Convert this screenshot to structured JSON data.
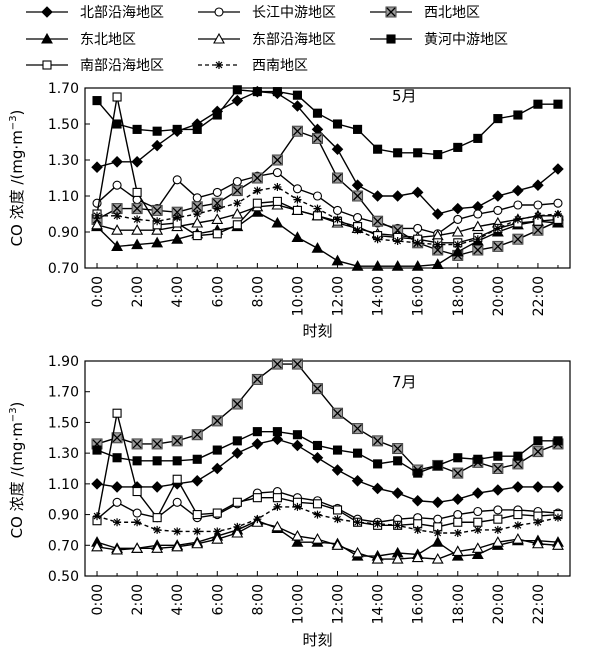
{
  "chart_data": [
    {
      "type": "line",
      "panel_label": "5月",
      "xlabel": "时刻",
      "ylabel": "CO 浓度 /(mg·m",
      "ylabel_sup": "−3",
      "ylabel_close": ")",
      "x": [
        0,
        1,
        2,
        3,
        4,
        5,
        6,
        7,
        8,
        9,
        10,
        11,
        12,
        13,
        14,
        15,
        16,
        17,
        18,
        19,
        20,
        21,
        22,
        23
      ],
      "xticks": [
        0,
        2,
        4,
        6,
        8,
        10,
        12,
        14,
        16,
        18,
        20,
        22
      ],
      "xtick_labels": [
        "0:00",
        "2:00",
        "4:00",
        "6:00",
        "8:00",
        "10:00",
        "12:00",
        "14:00",
        "16:00",
        "18:00",
        "20:00",
        "22:00"
      ],
      "ylim": [
        0.7,
        1.7
      ],
      "yticks": [
        0.7,
        0.9,
        1.1,
        1.3,
        1.5,
        1.7
      ],
      "ytick_labels": [
        "0.70",
        "0.90",
        "1.10",
        "1.30",
        "1.50",
        "1.70"
      ],
      "series": [
        {
          "name": "北部沿海地区",
          "values": [
            1.26,
            1.29,
            1.29,
            1.38,
            1.46,
            1.5,
            1.57,
            1.63,
            1.68,
            1.67,
            1.6,
            1.47,
            1.36,
            1.16,
            1.1,
            1.1,
            1.12,
            1.0,
            1.03,
            1.04,
            1.1,
            1.13,
            1.16,
            1.25
          ]
        },
        {
          "name": "长江中游地区",
          "values": [
            1.06,
            1.16,
            1.08,
            1.03,
            1.19,
            1.09,
            1.12,
            1.18,
            1.21,
            1.23,
            1.14,
            1.1,
            1.02,
            0.98,
            0.95,
            0.92,
            0.92,
            0.89,
            0.97,
            1.0,
            1.02,
            1.05,
            1.05,
            1.06
          ]
        },
        {
          "name": "西北地区",
          "values": [
            0.97,
            1.03,
            1.03,
            1.02,
            1.01,
            1.04,
            1.06,
            1.13,
            1.2,
            1.3,
            1.46,
            1.42,
            1.2,
            1.1,
            0.96,
            0.91,
            0.84,
            0.8,
            0.77,
            0.8,
            0.82,
            0.86,
            0.91,
            0.96
          ]
        },
        {
          "name": "黄河中游地区",
          "values": [
            1.63,
            1.5,
            1.47,
            1.46,
            1.47,
            1.47,
            1.55,
            1.69,
            1.68,
            1.68,
            1.66,
            1.56,
            1.5,
            1.47,
            1.36,
            1.34,
            1.34,
            1.33,
            1.37,
            1.42,
            1.53,
            1.55,
            1.61,
            1.61
          ]
        },
        {
          "name": "东北地区",
          "values": [
            0.93,
            0.82,
            0.83,
            0.84,
            0.86,
            0.89,
            0.91,
            0.93,
            1.01,
            0.95,
            0.87,
            0.81,
            0.74,
            0.71,
            0.71,
            0.71,
            0.71,
            0.72,
            0.79,
            0.85,
            0.9,
            0.94,
            0.96,
            0.95
          ]
        },
        {
          "name": "东部沿海地区",
          "values": [
            0.94,
            0.91,
            0.91,
            0.91,
            0.93,
            0.95,
            0.97,
            1.0,
            1.04,
            1.05,
            1.02,
            0.99,
            0.95,
            0.92,
            0.89,
            0.88,
            0.87,
            0.88,
            0.9,
            0.93,
            0.95,
            0.97,
            0.99,
            0.99
          ]
        },
        {
          "name": "南部沿海地区",
          "values": [
            1.0,
            1.65,
            1.12,
            0.94,
            0.95,
            0.88,
            0.89,
            0.94,
            1.06,
            1.07,
            1.02,
            0.99,
            0.96,
            0.93,
            0.88,
            0.87,
            0.86,
            0.84,
            0.84,
            0.87,
            0.92,
            0.95,
            0.96,
            0.97
          ]
        },
        {
          "name": "西南地区",
          "values": [
            0.99,
            0.99,
            0.97,
            0.96,
            0.98,
            1.0,
            1.03,
            1.06,
            1.13,
            1.15,
            1.08,
            1.03,
            0.97,
            0.91,
            0.86,
            0.85,
            0.84,
            0.83,
            0.83,
            0.86,
            0.92,
            0.97,
            0.99,
            1.0
          ]
        }
      ]
    },
    {
      "type": "line",
      "panel_label": "7月",
      "xlabel": "时刻",
      "ylabel": "CO 浓度 /(mg·m",
      "ylabel_sup": "−3",
      "ylabel_close": ")",
      "x": [
        0,
        1,
        2,
        3,
        4,
        5,
        6,
        7,
        8,
        9,
        10,
        11,
        12,
        13,
        14,
        15,
        16,
        17,
        18,
        19,
        20,
        21,
        22,
        23
      ],
      "xticks": [
        0,
        2,
        4,
        6,
        8,
        10,
        12,
        14,
        16,
        18,
        20,
        22
      ],
      "xtick_labels": [
        "0:00",
        "2:00",
        "4:00",
        "6:00",
        "8:00",
        "10:00",
        "12:00",
        "14:00",
        "16:00",
        "18:00",
        "20:00",
        "22:00"
      ],
      "ylim": [
        0.5,
        1.9
      ],
      "yticks": [
        0.5,
        0.7,
        0.9,
        1.1,
        1.3,
        1.5,
        1.7,
        1.9
      ],
      "ytick_labels": [
        "0.50",
        "0.70",
        "0.90",
        "1.10",
        "1.30",
        "1.50",
        "1.70",
        "1.90"
      ],
      "series": [
        {
          "name": "北部沿海地区",
          "values": [
            1.1,
            1.08,
            1.08,
            1.08,
            1.1,
            1.12,
            1.2,
            1.3,
            1.36,
            1.39,
            1.35,
            1.27,
            1.19,
            1.12,
            1.07,
            1.04,
            0.99,
            0.98,
            1.0,
            1.04,
            1.06,
            1.08,
            1.08,
            1.08
          ]
        },
        {
          "name": "长江中游地区",
          "values": [
            0.87,
            0.98,
            0.91,
            0.88,
            0.98,
            0.88,
            0.9,
            0.97,
            1.04,
            1.05,
            1.01,
            0.99,
            0.94,
            0.87,
            0.85,
            0.87,
            0.88,
            0.87,
            0.9,
            0.92,
            0.93,
            0.93,
            0.92,
            0.91
          ]
        },
        {
          "name": "西北地区",
          "values": [
            1.36,
            1.4,
            1.36,
            1.36,
            1.38,
            1.42,
            1.51,
            1.62,
            1.78,
            1.88,
            1.88,
            1.72,
            1.56,
            1.46,
            1.38,
            1.33,
            1.19,
            1.22,
            1.17,
            1.24,
            1.2,
            1.23,
            1.31,
            1.36
          ]
        },
        {
          "name": "黄河中游地区",
          "values": [
            1.32,
            1.27,
            1.25,
            1.25,
            1.25,
            1.26,
            1.32,
            1.38,
            1.44,
            1.44,
            1.42,
            1.35,
            1.32,
            1.3,
            1.23,
            1.25,
            1.17,
            1.22,
            1.27,
            1.26,
            1.28,
            1.28,
            1.38,
            1.38
          ]
        },
        {
          "name": "东北地区",
          "values": [
            0.72,
            0.68,
            0.68,
            0.7,
            0.7,
            0.72,
            0.76,
            0.8,
            0.86,
            0.81,
            0.72,
            0.72,
            0.71,
            0.63,
            0.63,
            0.65,
            0.64,
            0.72,
            0.63,
            0.64,
            0.7,
            0.73,
            0.73,
            0.72
          ]
        },
        {
          "name": "东部沿海地区",
          "values": [
            0.69,
            0.67,
            0.68,
            0.68,
            0.69,
            0.71,
            0.74,
            0.78,
            0.85,
            0.82,
            0.76,
            0.74,
            0.7,
            0.65,
            0.61,
            0.61,
            0.62,
            0.61,
            0.66,
            0.68,
            0.72,
            0.74,
            0.71,
            0.7
          ]
        },
        {
          "name": "南部沿海地区",
          "values": [
            0.86,
            1.56,
            1.05,
            0.88,
            1.13,
            0.9,
            0.91,
            0.98,
            1.01,
            1.01,
            0.98,
            0.97,
            0.93,
            0.85,
            0.83,
            0.83,
            0.84,
            0.82,
            0.85,
            0.85,
            0.87,
            0.9,
            0.89,
            0.9
          ]
        },
        {
          "name": "西南地区",
          "values": [
            0.89,
            0.85,
            0.85,
            0.8,
            0.79,
            0.79,
            0.79,
            0.82,
            0.87,
            0.95,
            0.95,
            0.9,
            0.87,
            0.85,
            0.84,
            0.83,
            0.8,
            0.78,
            0.78,
            0.8,
            0.8,
            0.83,
            0.85,
            0.88
          ]
        }
      ]
    }
  ],
  "legend": [
    {
      "name": "北部沿海地区",
      "marker": "diamond",
      "fill": "black",
      "dash": "solid"
    },
    {
      "name": "长江中游地区",
      "marker": "circle",
      "fill": "white",
      "dash": "solid"
    },
    {
      "name": "西北地区",
      "marker": "xsquare",
      "fill": "gray",
      "dash": "solid"
    },
    {
      "name": "东北地区",
      "marker": "triangle",
      "fill": "black",
      "dash": "solid"
    },
    {
      "name": "东部沿海地区",
      "marker": "triangle",
      "fill": "white",
      "dash": "solid"
    },
    {
      "name": "黄河中游地区",
      "marker": "square",
      "fill": "black",
      "dash": "solid"
    },
    {
      "name": "南部沿海地区",
      "marker": "square",
      "fill": "white",
      "dash": "solid"
    },
    {
      "name": "西南地区",
      "marker": "star",
      "fill": "black",
      "dash": "dashed"
    }
  ],
  "colors": {
    "line": "#000000",
    "marker_gray": "#9a9a9a",
    "background": "#ffffff"
  }
}
